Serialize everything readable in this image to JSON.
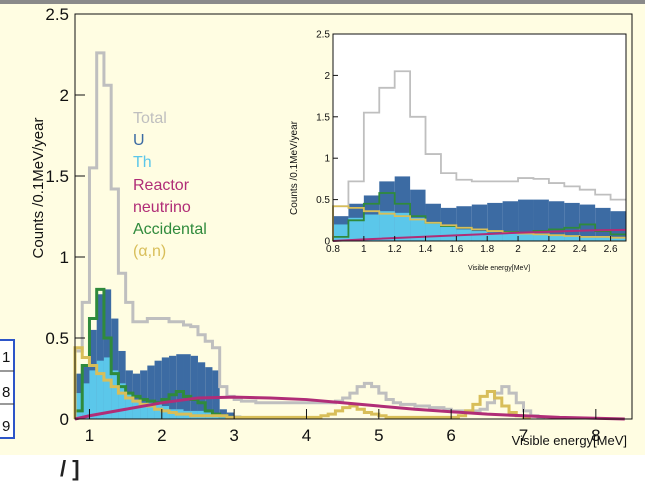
{
  "colors": {
    "page_bg": "#fffde2",
    "total": "#bfbfbf",
    "U": "#3c6ba3",
    "Th": "#5bc7ea",
    "reactor": "#b02d77",
    "accidental": "#2f8a3c",
    "alpha_n": "#d8be59",
    "frame": "#2d55c8"
  },
  "side_table_fragments": [
    "1",
    "8",
    "9"
  ],
  "bottom_fragment": "/ ]",
  "chart_data": [
    {
      "type": "area",
      "title": "",
      "xlabel": "Visible energy[MeV]",
      "ylabel": "Counts /0.1MeV/year",
      "xlim": [
        0.8,
        8.5
      ],
      "ylim": [
        0,
        2.5
      ],
      "xticks": [
        1,
        2,
        3,
        4,
        5,
        6,
        7,
        8
      ],
      "yticks": [
        0,
        0.5,
        1,
        1.5,
        2,
        2.5
      ],
      "grid": false,
      "legend_position": "top-left inside",
      "legend": [
        "Total",
        "U",
        "Th",
        "Reactor",
        "neutrino",
        "Accidental",
        "(α,n)"
      ],
      "bin_width": 0.1,
      "bins_start": 0.8,
      "series": [
        {
          "name": "U",
          "style": "filled-histogram",
          "values": [
            0.28,
            0.33,
            0.55,
            0.77,
            0.8,
            0.62,
            0.42,
            0.3,
            0.28,
            0.3,
            0.33,
            0.36,
            0.38,
            0.39,
            0.4,
            0.4,
            0.39,
            0.35,
            0.32,
            0.3,
            0.06,
            0.04,
            0.02,
            0.01
          ]
        },
        {
          "name": "Th",
          "style": "filled-histogram",
          "values": [
            0.16,
            0.22,
            0.3,
            0.36,
            0.38,
            0.3,
            0.22,
            0.16,
            0.12,
            0.1,
            0.1,
            0.09,
            0.08,
            0.06,
            0.06,
            0.05,
            0.05,
            0.05,
            0.04,
            0.03,
            0.02,
            0.01
          ]
        },
        {
          "name": "Total",
          "style": "step",
          "values": [
            0.42,
            0.72,
            1.55,
            2.26,
            2.06,
            1.42,
            0.9,
            0.72,
            0.6,
            0.6,
            0.62,
            0.62,
            0.62,
            0.6,
            0.6,
            0.58,
            0.57,
            0.52,
            0.48,
            0.44,
            0.2,
            0.14,
            0.12,
            0.11,
            0.11,
            0.1,
            0.1,
            0.1,
            0.1,
            0.1,
            0.1,
            0.1,
            0.1,
            0.1,
            0.1,
            0.1,
            0.11,
            0.13,
            0.16,
            0.2,
            0.22,
            0.2,
            0.16,
            0.12,
            0.1,
            0.09,
            0.09,
            0.08,
            0.08,
            0.07,
            0.07,
            0.06,
            0.05,
            0.05,
            0.05,
            0.05,
            0.06,
            0.1,
            0.16,
            0.2,
            0.16,
            0.1,
            0.05,
            0.02,
            0.01
          ]
        },
        {
          "name": "Accidental",
          "style": "step",
          "values": [
            0.05,
            0.33,
            0.62,
            0.8,
            0.5,
            0.28,
            0.2,
            0.16,
            0.14,
            0.12,
            0.11,
            0.1,
            0.12,
            0.15,
            0.17,
            0.14,
            0.12,
            0.1,
            0.05,
            0.03,
            0.02,
            0.01
          ]
        },
        {
          "name": "(α,n)",
          "style": "step",
          "values": [
            0.44,
            0.38,
            0.33,
            0.28,
            0.24,
            0.2,
            0.16,
            0.13,
            0.11,
            0.09,
            0.08,
            0.06,
            0.05,
            0.04,
            0.03,
            0.03,
            0.02,
            0.02,
            0.02,
            0.02,
            0.02,
            0.01,
            0.01,
            0.01,
            0.01,
            0.01,
            0.01,
            0.01,
            0.01,
            0.01,
            0.01,
            0.01,
            0.01,
            0.01,
            0.02,
            0.03,
            0.05,
            0.07,
            0.08,
            0.06,
            0.04,
            0.03,
            0.02,
            0.01,
            0.01,
            0.01,
            0.01,
            0.01,
            0.01,
            0.01,
            0.01,
            0.01,
            0.01,
            0.02,
            0.05,
            0.09,
            0.14,
            0.17,
            0.13,
            0.08,
            0.04,
            0.02,
            0.01
          ]
        },
        {
          "name": "Reactor neutrino",
          "style": "line",
          "x": [
            0.8,
            1.0,
            1.5,
            2.0,
            2.5,
            3.0,
            3.5,
            4.0,
            4.5,
            5.0,
            5.5,
            6.0,
            6.5,
            7.0,
            7.5,
            8.0,
            8.4
          ],
          "y": [
            0.0,
            0.02,
            0.06,
            0.1,
            0.13,
            0.135,
            0.13,
            0.12,
            0.1,
            0.08,
            0.06,
            0.045,
            0.03,
            0.02,
            0.01,
            0.005,
            0.0
          ]
        }
      ]
    },
    {
      "type": "area",
      "title": "",
      "xlabel": "Visible energy[MeV]",
      "ylabel": "Counts /0.1MeV/year",
      "xlim": [
        0.8,
        2.7
      ],
      "ylim": [
        0,
        2.5
      ],
      "xticks": [
        0.8,
        1,
        1.2,
        1.4,
        1.6,
        1.8,
        2,
        2.2,
        2.4,
        2.6
      ],
      "yticks": [
        0,
        0.5,
        1,
        1.5,
        2,
        2.5
      ],
      "grid": false,
      "bin_width": 0.1,
      "bins_start": 0.8,
      "series": [
        {
          "name": "U",
          "style": "filled-histogram",
          "values": [
            0.3,
            0.45,
            0.55,
            0.72,
            0.78,
            0.62,
            0.45,
            0.4,
            0.42,
            0.44,
            0.46,
            0.48,
            0.5,
            0.5,
            0.48,
            0.46,
            0.44,
            0.4,
            0.36
          ]
        },
        {
          "name": "Th",
          "style": "filled-histogram",
          "values": [
            0.2,
            0.28,
            0.32,
            0.36,
            0.34,
            0.28,
            0.22,
            0.18,
            0.14,
            0.12,
            0.1,
            0.1,
            0.09,
            0.08,
            0.07,
            0.06,
            0.05,
            0.05,
            0.04
          ]
        },
        {
          "name": "Total",
          "style": "step",
          "values": [
            0.42,
            0.72,
            1.55,
            1.85,
            2.05,
            1.5,
            1.05,
            0.82,
            0.74,
            0.72,
            0.72,
            0.72,
            0.76,
            0.75,
            0.7,
            0.66,
            0.62,
            0.56,
            0.5
          ]
        },
        {
          "name": "Accidental",
          "style": "step",
          "values": [
            0.05,
            0.25,
            0.45,
            0.58,
            0.45,
            0.3,
            0.22,
            0.18,
            0.16,
            0.14,
            0.12,
            0.11,
            0.1,
            0.12,
            0.14,
            0.16,
            0.2,
            0.12,
            0.08
          ]
        },
        {
          "name": "(α,n)",
          "style": "step",
          "values": [
            0.42,
            0.4,
            0.36,
            0.33,
            0.3,
            0.26,
            0.22,
            0.19,
            0.16,
            0.14,
            0.12,
            0.1,
            0.09,
            0.08,
            0.07,
            0.06,
            0.05,
            0.05,
            0.04
          ]
        },
        {
          "name": "Reactor neutrino",
          "style": "line",
          "x": [
            0.8,
            1.0,
            1.5,
            2.0,
            2.5,
            2.7
          ],
          "y": [
            0.0,
            0.02,
            0.06,
            0.1,
            0.13,
            0.135
          ]
        }
      ]
    }
  ]
}
